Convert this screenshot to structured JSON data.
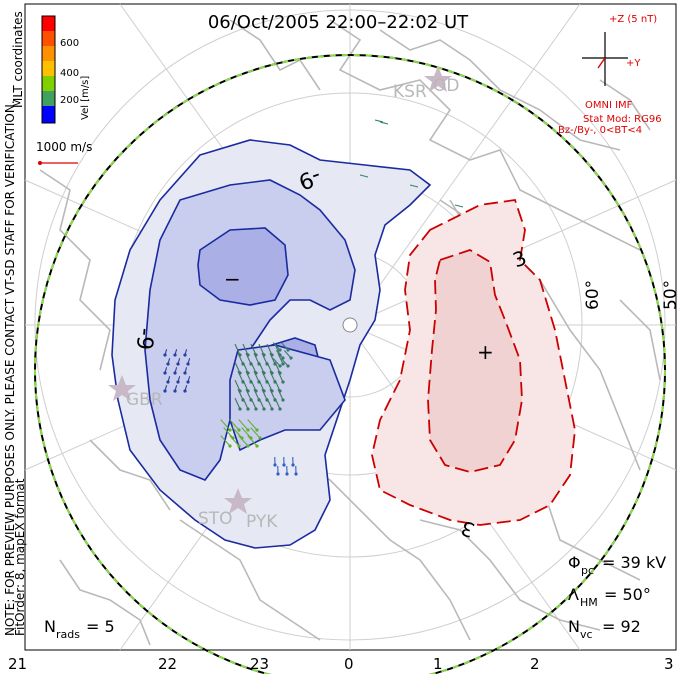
{
  "title": "06/Oct/2005 22:00–22:02 UT",
  "side_label_1": "NOTE: FOR PREVIEW PURPOSES ONLY. PLEASE CONTACT VT-SD STAFF FOR VERIFICATION.",
  "side_label_2": "FitOrder: 8, mapEX format",
  "coords_label": "MLT coordinates",
  "colorbar": {
    "label": "Vel [m/s]",
    "ticks": [
      "600",
      "400",
      "200"
    ],
    "colors": [
      "#ff0000",
      "#ff8000",
      "#ffc000",
      "#80d000",
      "#40a040",
      "#3060c0",
      "#0000ff"
    ]
  },
  "scale_vector": {
    "label": "1000 m/s",
    "color": "#e00000"
  },
  "imf": {
    "axis_z": "+Z (5 nT)",
    "axis_y": "+Y",
    "source": "OMNI IMF",
    "model": "Stat Mod: RG96",
    "condition": "Bz-/By-, 0<BT<4"
  },
  "contour_labels": {
    "negative": "-9",
    "negative_2": "-9",
    "positive": "3",
    "positive_2": "3"
  },
  "cell_markers": {
    "min": "−",
    "max": "+"
  },
  "lat_labels": [
    "60°",
    "50°"
  ],
  "stations": [
    "KSR",
    "OD",
    "GBR",
    "STO",
    "PYK"
  ],
  "stats": {
    "phi_pc_symbol": "Φ",
    "phi_pc_sub": "pc",
    "phi_pc_value": "= 39 kV",
    "lambda_hm_symbol": "Λ",
    "lambda_hm_sub": "HM",
    "lambda_hm_value": "= 50°",
    "n_vc_symbol": "N",
    "n_vc_sub": "vc",
    "n_vc_value": "= 92",
    "n_rads_symbol": "N",
    "n_rads_sub": "rads",
    "n_rads_value": "= 5"
  },
  "mlt_labels": [
    "21",
    "22",
    "23",
    "0",
    "1",
    "2",
    "3"
  ],
  "colors": {
    "neg_fill_outer": "#e6e8f4",
    "neg_fill_mid": "#c9cdee",
    "neg_fill_inner": "#aab0e6",
    "neg_line": "#1a2aa0",
    "pos_fill_outer": "#f8e6e6",
    "pos_fill_inner": "#f1d2d2",
    "pos_line": "#cc0000",
    "coast": "#b9b9b9",
    "boundary_green": "#88dd44"
  }
}
